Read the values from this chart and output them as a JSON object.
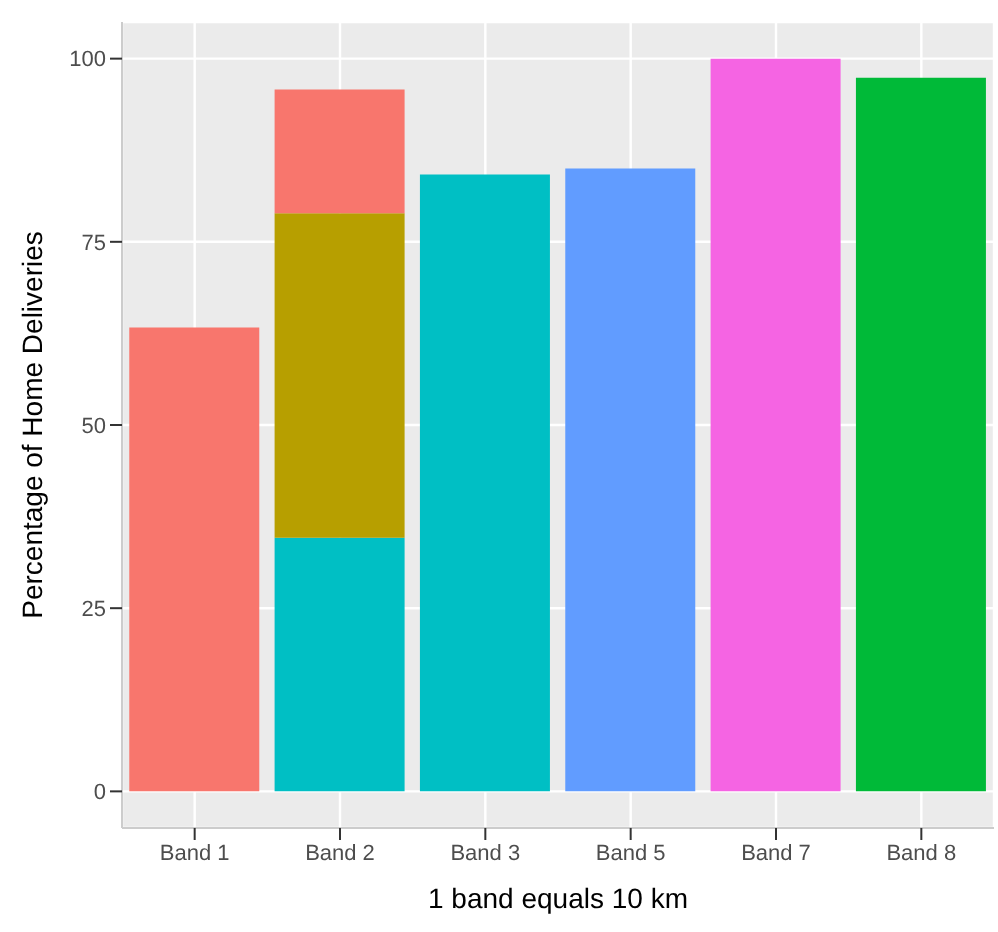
{
  "chart_data": {
    "type": "bar",
    "xlabel": "1 band equals 10 km",
    "ylabel": "Percentage of Home Deliveries",
    "categories": [
      "Band 1",
      "Band 2",
      "Band 3",
      "Band 5",
      "Band 7",
      "Band 8"
    ],
    "stacked": true,
    "series": [
      {
        "values": [
          63.3,
          34.6,
          84.2,
          85.0,
          100,
          97.4
        ],
        "colors": [
          "#f8766d",
          "#00bfc4",
          "#00bfc4",
          "#619cff",
          "#f564e3",
          "#00ba38"
        ]
      },
      {
        "values": [
          null,
          44.3,
          null,
          null,
          null,
          null
        ],
        "color": "#b79f00"
      },
      {
        "values": [
          null,
          16.9,
          null,
          null,
          null,
          null
        ],
        "color": "#f8766d"
      }
    ],
    "ylim": [
      -5,
      105
    ],
    "yticks": [
      0,
      25,
      50,
      75,
      100
    ],
    "grid": true
  }
}
